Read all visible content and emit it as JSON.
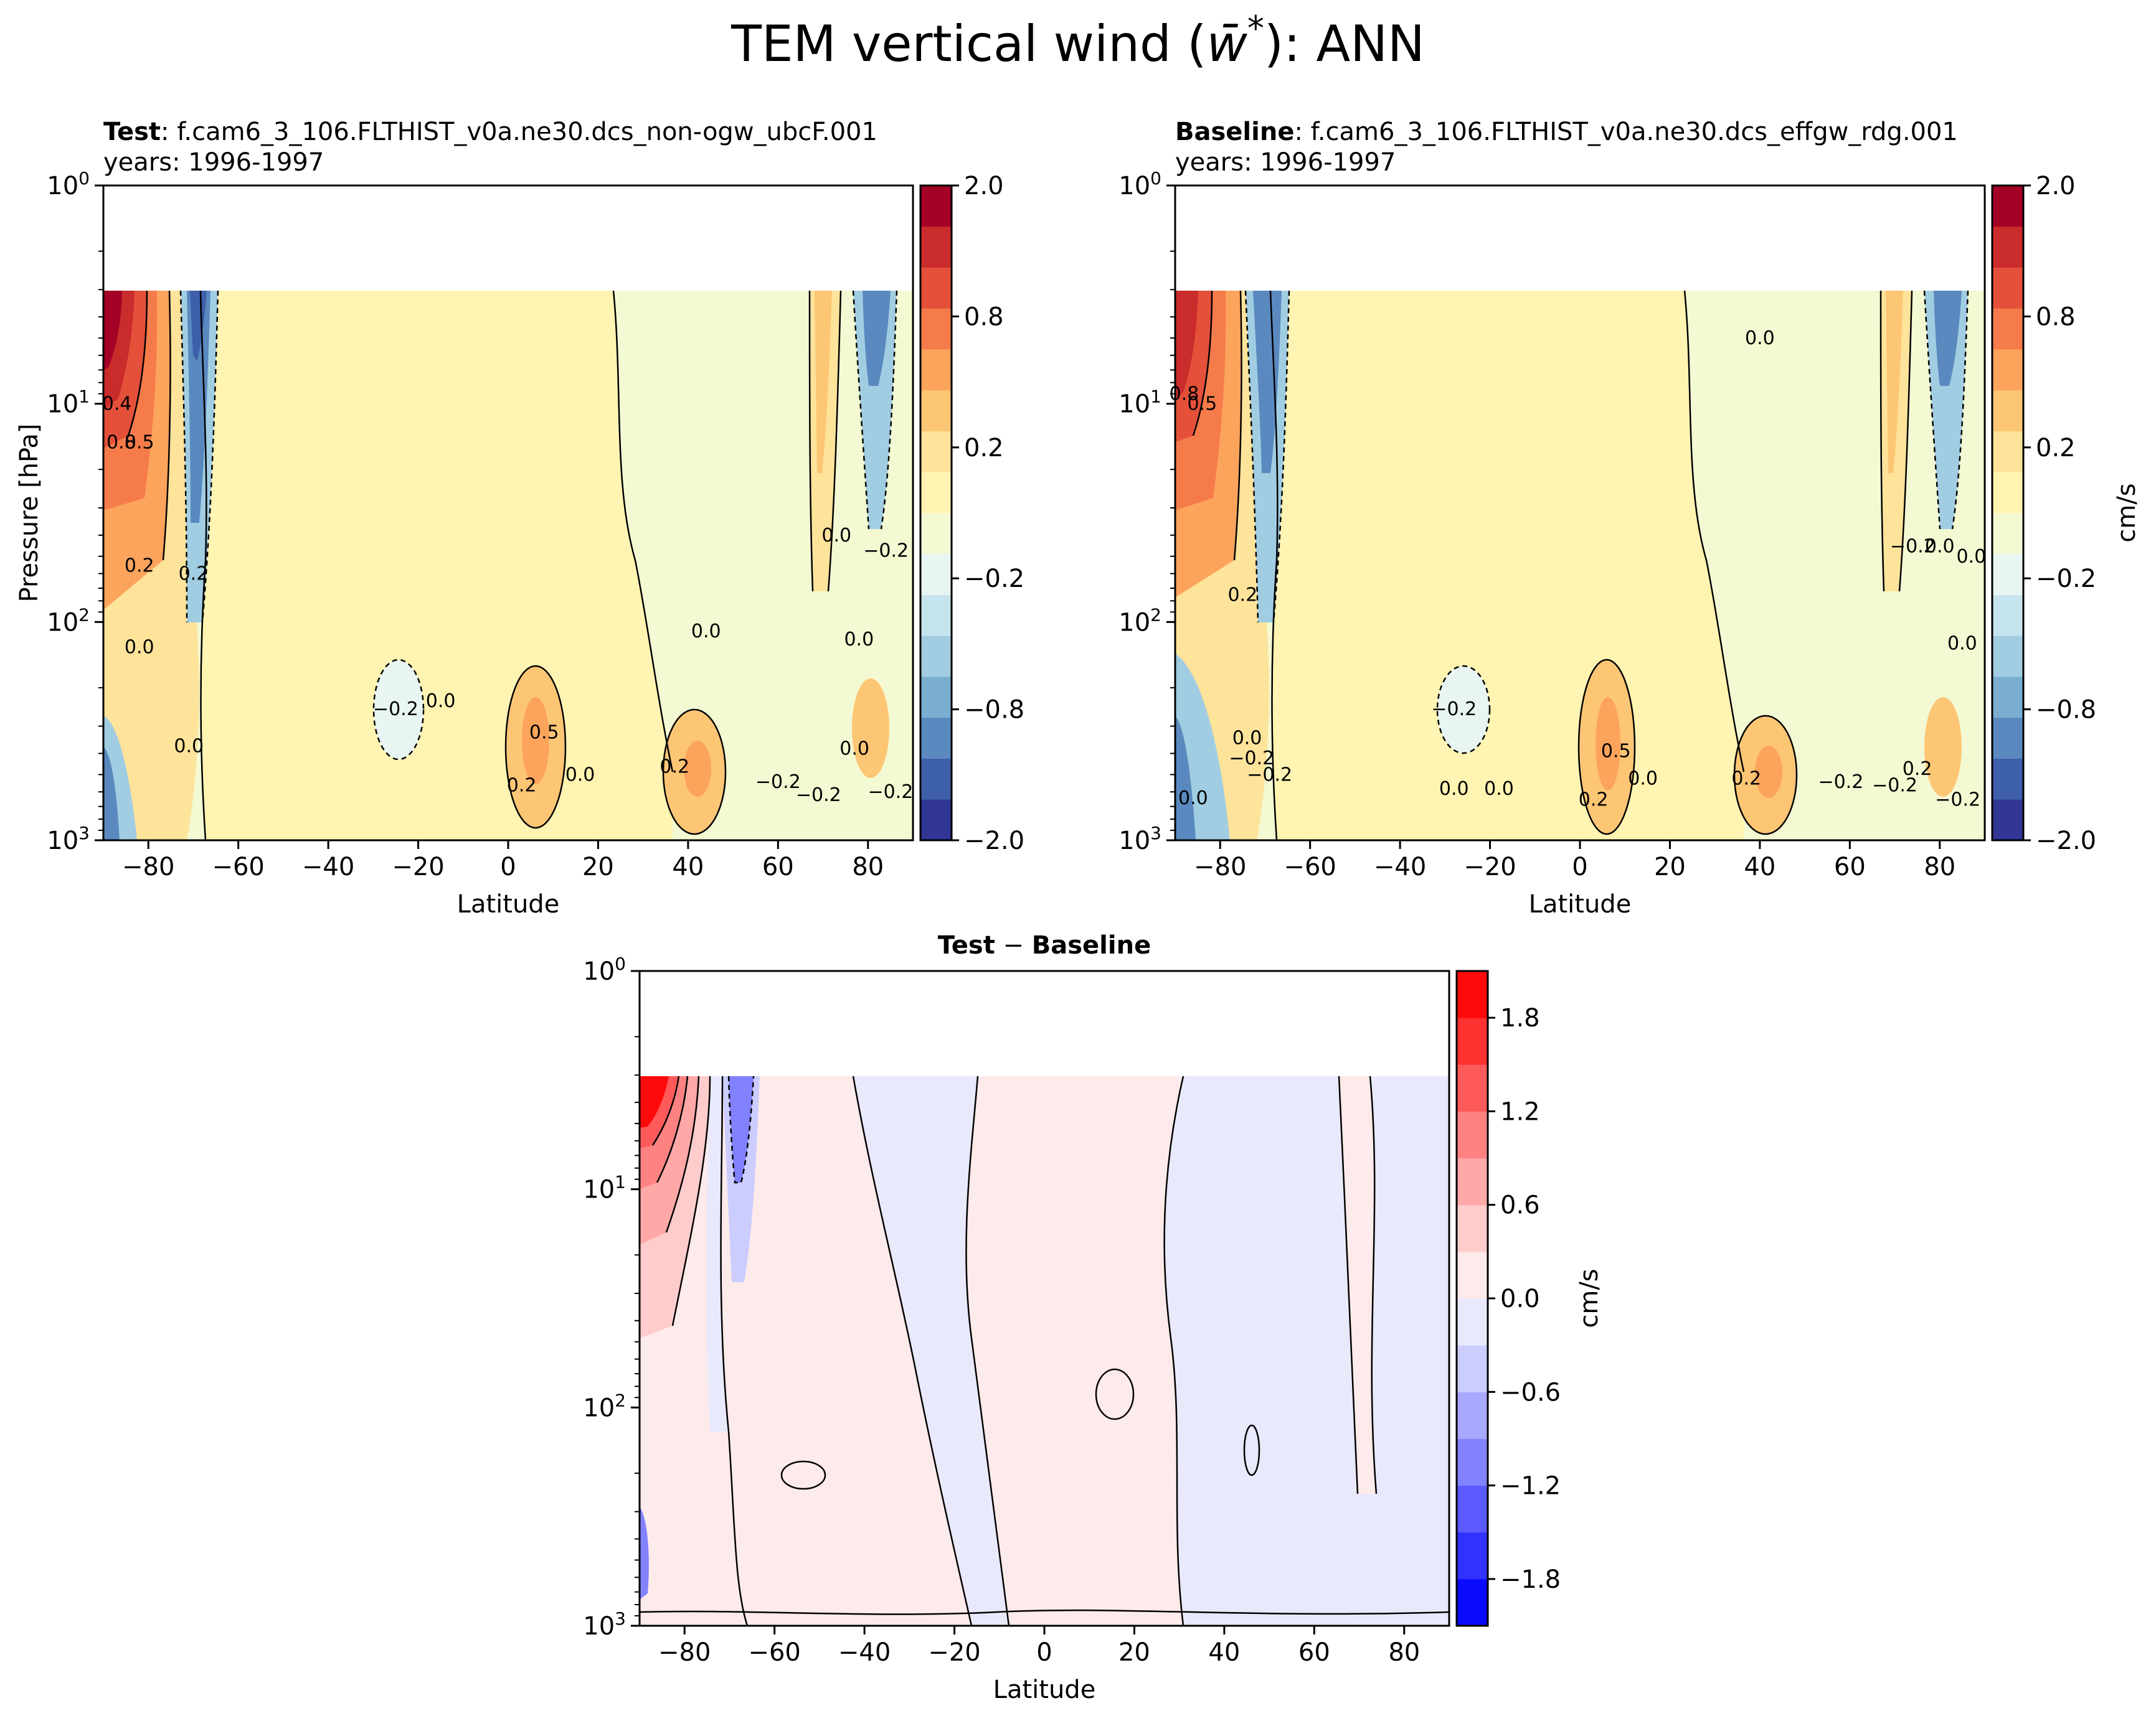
{
  "figure": {
    "title": "TEM vertical wind (w̄*): ANN",
    "title_prefix": "TEM vertical wind (",
    "title_var": "w̄",
    "title_sup": "*",
    "title_suffix": "): ANN"
  },
  "colors": {
    "div_neg": [
      "#313695",
      "#3e5fa9",
      "#5a89bf",
      "#7aaed1",
      "#a1cde2",
      "#c6e4ee",
      "#e8f5f2"
    ],
    "div_mid": [
      "#f3f9d2",
      "#fff4b2"
    ],
    "div_pos": [
      "#fee39a",
      "#fdc675",
      "#fca45c",
      "#f67b4a",
      "#e4503a",
      "#ca2b2b",
      "#a50026"
    ],
    "diff_neg": [
      "#0a0aff",
      "#3232ff",
      "#5a5aff",
      "#8282ff",
      "#a8a8ff",
      "#cccdff",
      "#e9e9fc"
    ],
    "diff_pos": [
      "#fdeaea",
      "#ffcccc",
      "#ffa8a8",
      "#ff8282",
      "#ff5a5a",
      "#ff3232",
      "#ff0a0a"
    ]
  },
  "chart_data": [
    {
      "type": "contour",
      "panel": "test",
      "title_bold": "Test",
      "title_rest": ": f.cam6_3_106.FLTHIST_v0a.ne30.dcs_non-ogw_ubcF.001",
      "subtitle": "years: 1996-1997",
      "xlabel": "Latitude",
      "ylabel": "Pressure [hPa]",
      "xlim": [
        -90,
        90
      ],
      "ylim": [
        1000,
        1
      ],
      "yscale": "log",
      "data_top_hPa": 3,
      "xticks": [
        "−80",
        "−60",
        "−40",
        "−20",
        "0",
        "20",
        "40",
        "60",
        "80"
      ],
      "ytick_base": "10",
      "ytick_exps": [
        "0",
        "1",
        "2",
        "3"
      ],
      "colorbar_ticks": [
        "2.0",
        "0.8",
        "0.2",
        "−0.2",
        "−0.8",
        "−2.0"
      ],
      "colorbar_label": "",
      "contour_labels": [
        {
          "text": "0.5",
          "lat": -82,
          "p": 15
        },
        {
          "text": "0.8",
          "lat": -86,
          "p": 15
        },
        {
          "text": "0.4",
          "lat": -87,
          "p": 10
        },
        {
          "text": "0.2",
          "lat": -82,
          "p": 55
        },
        {
          "text": "0.2",
          "lat": -70,
          "p": 60
        },
        {
          "text": "0.0",
          "lat": -82,
          "p": 130
        },
        {
          "text": "0.0",
          "lat": -71,
          "p": 370
        },
        {
          "text": "−0.2",
          "lat": -25,
          "p": 250
        },
        {
          "text": "0.0",
          "lat": -15,
          "p": 230
        },
        {
          "text": "0.5",
          "lat": 8,
          "p": 320
        },
        {
          "text": "0.2",
          "lat": 3,
          "p": 560
        },
        {
          "text": "0.0",
          "lat": 16,
          "p": 500
        },
        {
          "text": "0.2",
          "lat": 37,
          "p": 460
        },
        {
          "text": "−0.2",
          "lat": 60,
          "p": 540
        },
        {
          "text": "−0.2",
          "lat": 69,
          "p": 620
        },
        {
          "text": "0.0",
          "lat": 77,
          "p": 380
        },
        {
          "text": "0.0",
          "lat": 73,
          "p": 40
        },
        {
          "text": "−0.2",
          "lat": 84,
          "p": 47
        },
        {
          "text": "0.0",
          "lat": 44,
          "p": 110
        },
        {
          "text": "0.0",
          "lat": 78,
          "p": 120
        },
        {
          "text": "−0.2",
          "lat": 85,
          "p": 600
        }
      ]
    },
    {
      "type": "contour",
      "panel": "baseline",
      "title_bold": "Baseline",
      "title_rest": ": f.cam6_3_106.FLTHIST_v0a.ne30.dcs_effgw_rdg.001",
      "subtitle": "years: 1996-1997",
      "xlabel": "Latitude",
      "ylabel": "",
      "xlim": [
        -90,
        90
      ],
      "ylim": [
        1000,
        1
      ],
      "yscale": "log",
      "data_top_hPa": 3,
      "xticks": [
        "−80",
        "−60",
        "−40",
        "−20",
        "0",
        "20",
        "40",
        "60",
        "80"
      ],
      "ytick_base": "10",
      "ytick_exps": [
        "0",
        "1",
        "2",
        "3"
      ],
      "colorbar_ticks": [
        "2.0",
        "0.8",
        "0.2",
        "−0.2",
        "−0.8",
        "−2.0"
      ],
      "colorbar_label": "cm/s",
      "contour_labels": [
        {
          "text": "0.0",
          "lat": 40,
          "p": 5
        },
        {
          "text": "0.5",
          "lat": -84,
          "p": 10
        },
        {
          "text": "0.8",
          "lat": -88,
          "p": 9
        },
        {
          "text": "0.2",
          "lat": -75,
          "p": 75
        },
        {
          "text": "−0.2",
          "lat": 74,
          "p": 45
        },
        {
          "text": "0.0",
          "lat": 80,
          "p": 45
        },
        {
          "text": "0.0",
          "lat": 85,
          "p": 125
        },
        {
          "text": "0.0",
          "lat": 87,
          "p": 50
        },
        {
          "text": "−0.2",
          "lat": -28,
          "p": 250
        },
        {
          "text": "0.0",
          "lat": -74,
          "p": 340
        },
        {
          "text": "−0.2",
          "lat": -73,
          "p": 420
        },
        {
          "text": "−0.2",
          "lat": -69,
          "p": 500
        },
        {
          "text": "0.0",
          "lat": -86,
          "p": 640
        },
        {
          "text": "0.0",
          "lat": -28,
          "p": 580
        },
        {
          "text": "0.0",
          "lat": -18,
          "p": 580
        },
        {
          "text": "0.5",
          "lat": 8,
          "p": 390
        },
        {
          "text": "0.2",
          "lat": 3,
          "p": 650
        },
        {
          "text": "0.0",
          "lat": 14,
          "p": 520
        },
        {
          "text": "0.2",
          "lat": 37,
          "p": 520
        },
        {
          "text": "−0.2",
          "lat": 58,
          "p": 540
        },
        {
          "text": "−0.2",
          "lat": 70,
          "p": 560
        },
        {
          "text": "−0.2",
          "lat": 84,
          "p": 650
        },
        {
          "text": "0.2",
          "lat": 75,
          "p": 470
        }
      ]
    },
    {
      "type": "contour",
      "panel": "difference",
      "title_bold_a": "Test",
      "title_mid": " − ",
      "title_bold_b": "Baseline",
      "xlabel": "Latitude",
      "ylabel": "",
      "xlim": [
        -90,
        90
      ],
      "ylim": [
        1000,
        1
      ],
      "yscale": "log",
      "data_top_hPa": 3,
      "xticks": [
        "−80",
        "−60",
        "−40",
        "−20",
        "0",
        "20",
        "40",
        "60",
        "80"
      ],
      "ytick_base": "10",
      "ytick_exps": [
        "0",
        "1",
        "2",
        "3"
      ],
      "colorbar_ticks": [
        "1.8",
        "1.2",
        "0.6",
        "0.0",
        "−0.6",
        "−1.2",
        "−1.8"
      ],
      "colorbar_label": "cm/s",
      "contour_labels": []
    }
  ]
}
